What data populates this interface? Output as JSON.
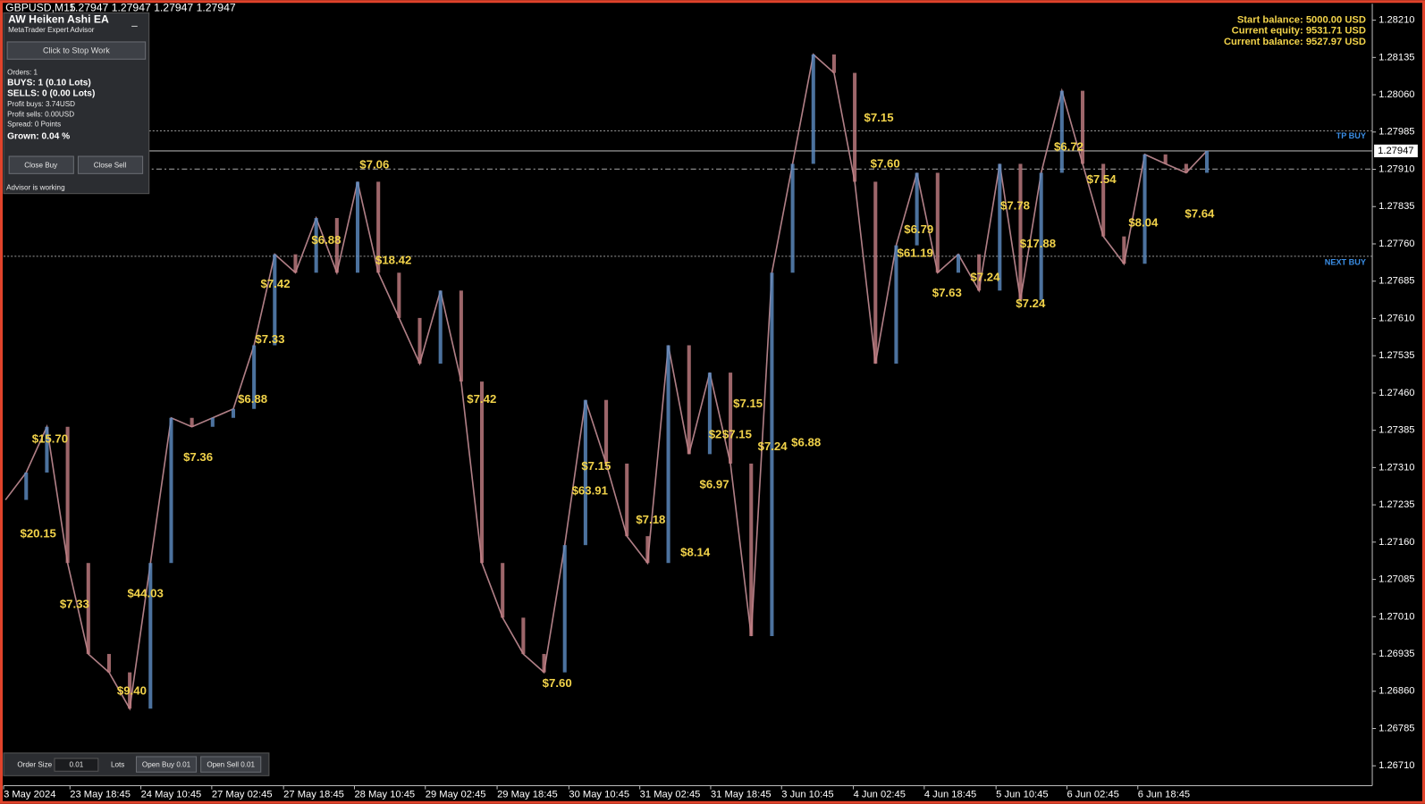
{
  "header": {
    "symbol": "GBPUSD,M15",
    "quotes": "1.27947 1.27947 1.27947 1.27947"
  },
  "account": {
    "start_balance": "Start balance: 5000.00 USD",
    "current_equity": "Current equity: 9531.71 USD",
    "current_balance": "Current balance: 9527.97 USD"
  },
  "panel": {
    "title": "AW Heiken Ashi EA",
    "subtitle": "MetaTrader Expert Advisor",
    "minimize": "_",
    "stop_button": "Click to Stop Work",
    "orders": "Orders: 1",
    "buys": "BUYS: 1 (0.10 Lots)",
    "sells": "SELLS: 0 (0.00 Lots)",
    "profit_buys": "Profit buys: 3.74USD",
    "profit_sells": "Profit sells: 0.00USD",
    "spread": "Spread: 0 Points",
    "grown": "Grown: 0.04 %",
    "close_buy": "Close Buy",
    "close_sell": "Close Sell",
    "status": "Advisor is working"
  },
  "order_panel": {
    "order_size": "Order Size",
    "lot_value": "0.01",
    "lots": "Lots",
    "open_buy": "Open Buy 0.01",
    "open_sell": "Open Sell 0.01"
  },
  "levels": {
    "tp_buy": "TP BUY",
    "next_buy": "NEXT BUY"
  },
  "chart": {
    "ylim": [
      1.2667,
      1.28243
    ],
    "yticks": [
      {
        "value": 1.2821,
        "label": "1.28210"
      },
      1.28135,
      {
        "value": 1.2806,
        "label": "1.28060"
      },
      1.27985,
      {
        "value": 1.2791,
        "label": "1.27910"
      },
      1.27835,
      {
        "value": 1.2776,
        "label": "1.27760"
      },
      1.27685,
      {
        "value": 1.2761,
        "label": "1.27610"
      },
      1.27535,
      {
        "value": 1.2746,
        "label": "1.27460"
      },
      1.27385,
      {
        "value": 1.2731,
        "label": "1.27310"
      },
      1.27235,
      {
        "value": 1.2716,
        "label": "1.27160"
      },
      1.27085,
      {
        "value": 1.2701,
        "label": "1.27010"
      },
      1.26935,
      {
        "value": 1.2686,
        "label": "1.26860"
      },
      1.26785,
      {
        "value": 1.2671,
        "label": "1.26710"
      }
    ],
    "current_price": 1.27947,
    "dates": [
      "3 May 2024",
      "23 May 18:45",
      "24 May 10:45",
      "27 May 02:45",
      "27 May 18:45",
      "28 May 10:45",
      "29 May 02:45",
      "29 May 18:45",
      "30 May 10:45",
      "31 May 02:45",
      "31 May 18:45",
      "3 Jun 10:45",
      "4 Jun 02:45",
      "4 Jun 18:45",
      "5 Jun 10:45",
      "6 Jun 02:45",
      "6 Jun 18:45"
    ],
    "closes": [
      1.27245,
      1.273,
      1.27392,
      1.27118,
      1.26935,
      1.26898,
      1.26825,
      1.27118,
      1.2741,
      1.27392,
      1.2741,
      1.27428,
      1.27556,
      1.27739,
      1.27702,
      1.27812,
      1.27702,
      1.27885,
      1.27702,
      1.27611,
      1.27519,
      1.27666,
      1.27483,
      1.27118,
      1.27008,
      1.26935,
      1.26898,
      1.27154,
      1.27446,
      1.27318,
      1.27172,
      1.27118,
      1.27556,
      1.27337,
      1.27501,
      1.27318,
      1.26971,
      1.27702,
      1.27921,
      1.28141,
      1.28104,
      1.27885,
      1.27519,
      1.27757,
      1.27903,
      1.27702,
      1.27739,
      1.27666,
      1.27921,
      1.27647,
      1.27903,
      1.28068,
      1.27921,
      1.27775,
      1.2772,
      1.2794,
      1.27921,
      1.27903,
      1.27947
    ],
    "profits": [
      "$15.70",
      "$20.15",
      "$7.33",
      "$44.03",
      "$9.40",
      "$7.36",
      "$6.88",
      "$7.33",
      "$7.42",
      "$6.88",
      "$7.06",
      "$18.42",
      "$7.42",
      "$7.15",
      "$63.91",
      "$7.18",
      "$7.60",
      "$8.14",
      "$6.97",
      "$2",
      "$7.15",
      "$7.15",
      "$7.24",
      "$6.88",
      "$7.15",
      "$7.60",
      "$6.79",
      "$61.19",
      "$7.63",
      "$7.24",
      "$7.78",
      "$17.88",
      "$7.24",
      "$6.72",
      "$7.54",
      "$8.04",
      "$7.64"
    ]
  }
}
